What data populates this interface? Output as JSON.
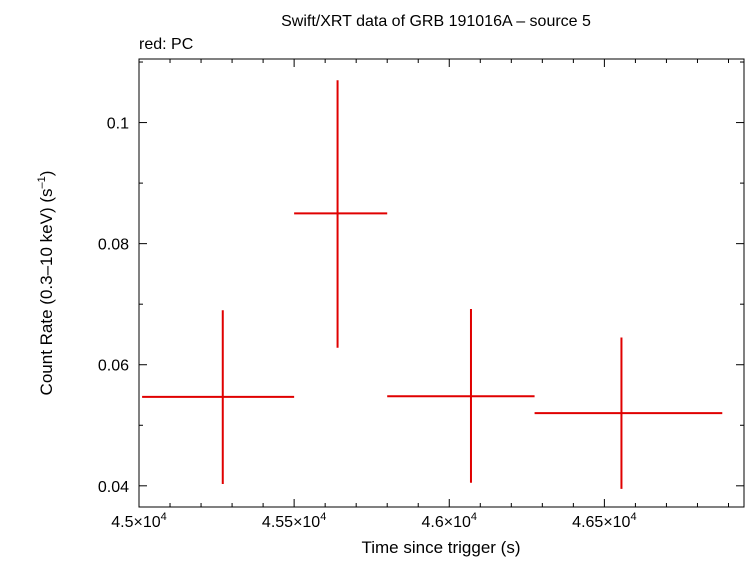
{
  "chart_data": {
    "type": "scatter",
    "title": "Swift/XRT data of GRB 191016A – source 5",
    "subtitle": "red: PC",
    "xlabel": "Time since trigger (s)",
    "ylabel_main": "Count Rate (0.3–10 keV) (s",
    "ylabel_sup": "–1",
    "ylabel_close": ")",
    "xlim": [
      45000,
      46950
    ],
    "ylim": [
      0.0365,
      0.1105
    ],
    "x_ticks": [
      {
        "value": 45000,
        "mantissa": "4.5×10",
        "exp": "4"
      },
      {
        "value": 45500,
        "mantissa": "4.55×10",
        "exp": "4"
      },
      {
        "value": 46000,
        "mantissa": "4.6×10",
        "exp": "4"
      },
      {
        "value": 46500,
        "mantissa": "4.65×10",
        "exp": "4"
      }
    ],
    "x_minor_step": 100,
    "y_ticks": [
      {
        "value": 0.04,
        "label": "0.04"
      },
      {
        "value": 0.06,
        "label": "0.06"
      },
      {
        "value": 0.08,
        "label": "0.08"
      },
      {
        "value": 0.1,
        "label": "0.1"
      }
    ],
    "y_minor_step": 0.01,
    "grid": false,
    "series": [
      {
        "color": "#e00000",
        "points": [
          {
            "x": 45270,
            "xmin": 45010,
            "xmax": 45500,
            "y": 0.0547,
            "ymin": 0.0403,
            "ymax": 0.069
          },
          {
            "x": 45640,
            "xmin": 45500,
            "xmax": 45800,
            "y": 0.085,
            "ymin": 0.0628,
            "ymax": 0.107
          },
          {
            "x": 46070,
            "xmin": 45800,
            "xmax": 46275,
            "y": 0.0548,
            "ymin": 0.0405,
            "ymax": 0.0692
          },
          {
            "x": 46555,
            "xmin": 46275,
            "xmax": 46880,
            "y": 0.052,
            "ymin": 0.0395,
            "ymax": 0.0645
          }
        ]
      }
    ]
  }
}
